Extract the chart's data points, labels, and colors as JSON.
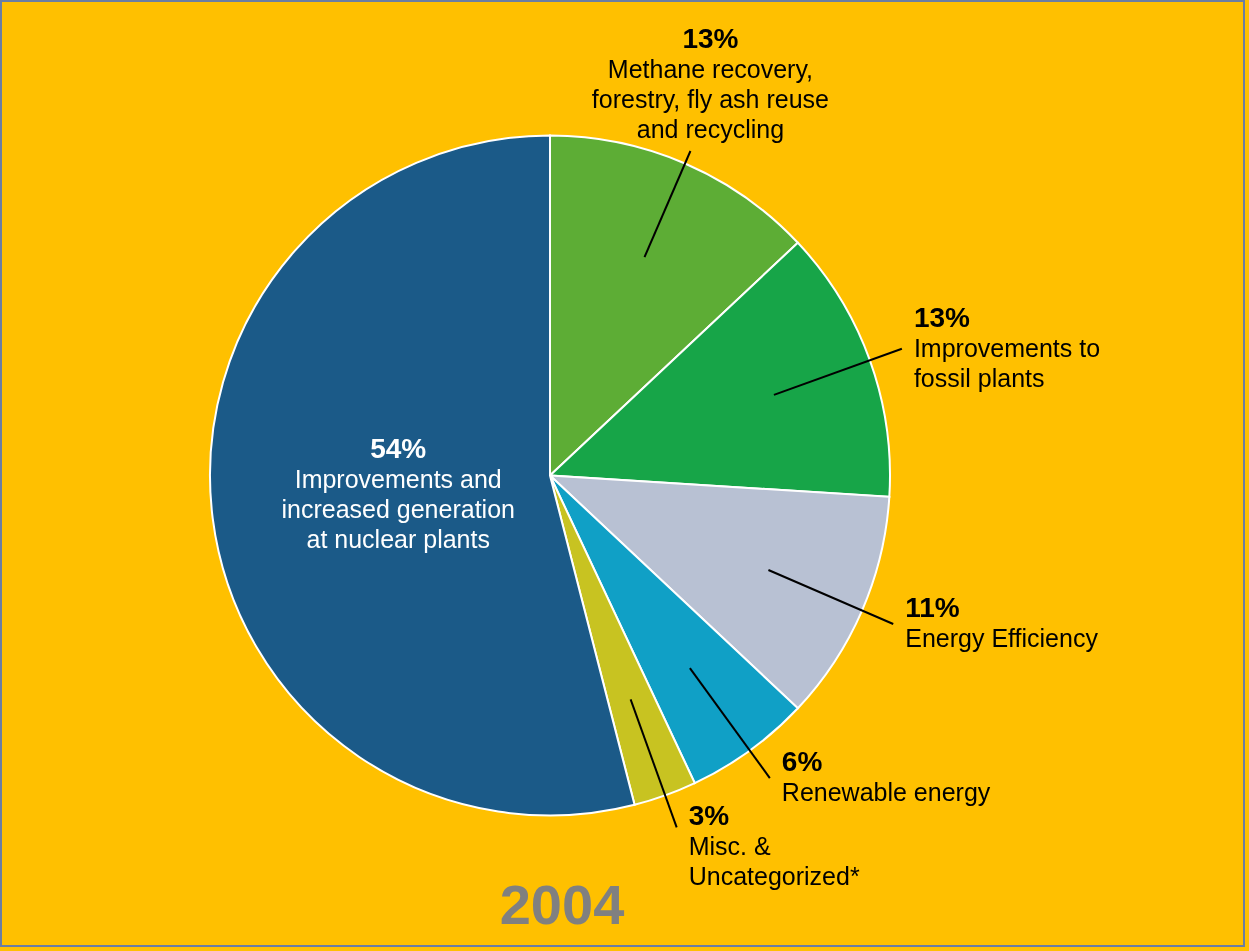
{
  "chart_data": {
    "type": "pie",
    "title": "2004",
    "categories": [
      "Methane recovery, forestry, fly ash reuse and recycling",
      "Improvements to fossil plants",
      "Energy Efficiency",
      "Renewable energy",
      "Misc. & Uncategorized*",
      "Improvements and increased generation at nuclear plants"
    ],
    "values": [
      13,
      13,
      11,
      6,
      3,
      54
    ],
    "value_labels": [
      "13%",
      "13%",
      "11%",
      "6%",
      "3%",
      "54%"
    ],
    "colors": [
      "#5dad35",
      "#17a548",
      "#b8c1d3",
      "#10a0c6",
      "#c8c321",
      "#1b5a88"
    ]
  }
}
